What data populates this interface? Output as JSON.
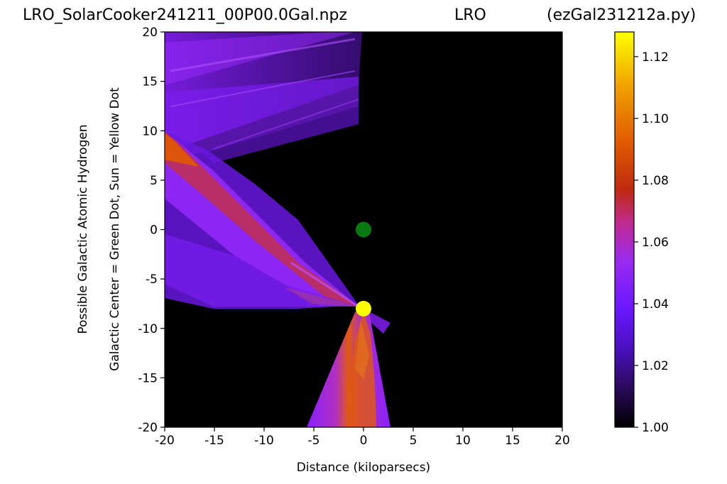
{
  "title": {
    "left": "LRO_SolarCooker241211_00P00.0Gal.npz",
    "center": "LRO",
    "right": "(ezGal231212a.py)"
  },
  "chart_data": {
    "type": "heatmap",
    "xlabel": "Distance (kiloparsecs)",
    "ylabel": "Galactic Center = Green Dot, Sun = Yellow Dot",
    "ylabel2": "Possible Galactic Atomic Hydrogen",
    "xlim": [
      -20,
      20
    ],
    "ylim": [
      -20,
      20
    ],
    "xticks": [
      "-20",
      "-15",
      "-10",
      "-5",
      "0",
      "5",
      "10",
      "15",
      "20"
    ],
    "yticks": [
      "20",
      "15",
      "10",
      "5",
      "0",
      "-5",
      "-10",
      "-15",
      "-20"
    ],
    "markers": [
      {
        "name": "galactic-center",
        "x": 0,
        "y": 0,
        "color": "#0a7a10"
      },
      {
        "name": "sun",
        "x": 0,
        "y": -8,
        "color": "#ffff00"
      }
    ],
    "colorbar": {
      "min": 1.0,
      "max": 1.128,
      "ticks": [
        "1.00",
        "1.02",
        "1.04",
        "1.06",
        "1.08",
        "1.10",
        "1.12"
      ],
      "tick_values": [
        1.0,
        1.02,
        1.04,
        1.06,
        1.08,
        1.1,
        1.12
      ],
      "colormap": "gnuplot"
    },
    "background": "#000000"
  }
}
